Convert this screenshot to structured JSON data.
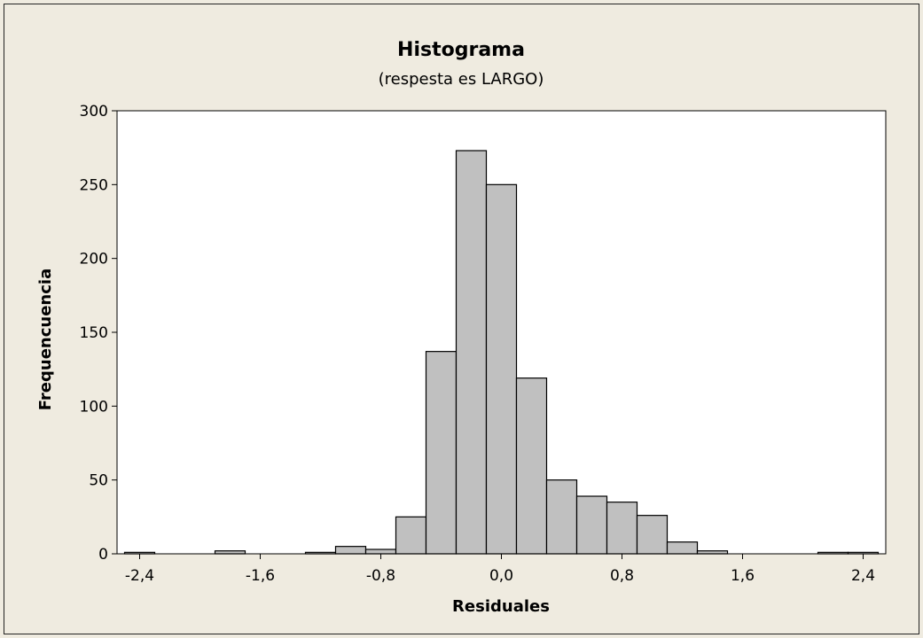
{
  "chart_data": {
    "type": "bar",
    "title": "Histograma",
    "subtitle": "(respesta es LARGO)",
    "xlabel": "Residuales",
    "ylabel": "Frequencuencia",
    "ylim": [
      0,
      300
    ],
    "xlim": [
      -2.55,
      2.55
    ],
    "grid": false,
    "yticks": [
      0,
      50,
      100,
      150,
      200,
      250,
      300
    ],
    "ytick_labels": [
      "0",
      "50",
      "100",
      "150",
      "200",
      "250",
      "300"
    ],
    "xticks": [
      -2.4,
      -1.6,
      -0.8,
      0.0,
      0.8,
      1.6,
      2.4
    ],
    "xtick_labels": [
      "-2,4",
      "-1,6",
      "-0,8",
      "0,0",
      "0,8",
      "1,6",
      "2,4"
    ],
    "bin_width": 0.2,
    "bin_centers": [
      -2.4,
      -2.2,
      -2.0,
      -1.8,
      -1.6,
      -1.4,
      -1.2,
      -1.0,
      -0.8,
      -0.6,
      -0.4,
      -0.2,
      0.0,
      0.2,
      0.4,
      0.6,
      0.8,
      1.0,
      1.2,
      1.4,
      1.6,
      1.8,
      2.0,
      2.2,
      2.4
    ],
    "values": [
      1,
      0,
      0,
      2,
      0,
      0,
      1,
      5,
      3,
      25,
      137,
      273,
      250,
      119,
      50,
      39,
      35,
      26,
      8,
      2,
      0,
      0,
      0,
      1,
      1
    ],
    "bar_color": "#c0c0c0",
    "edge_color": "#000000",
    "plot_background": "#ffffff",
    "background": "#efebe0"
  }
}
